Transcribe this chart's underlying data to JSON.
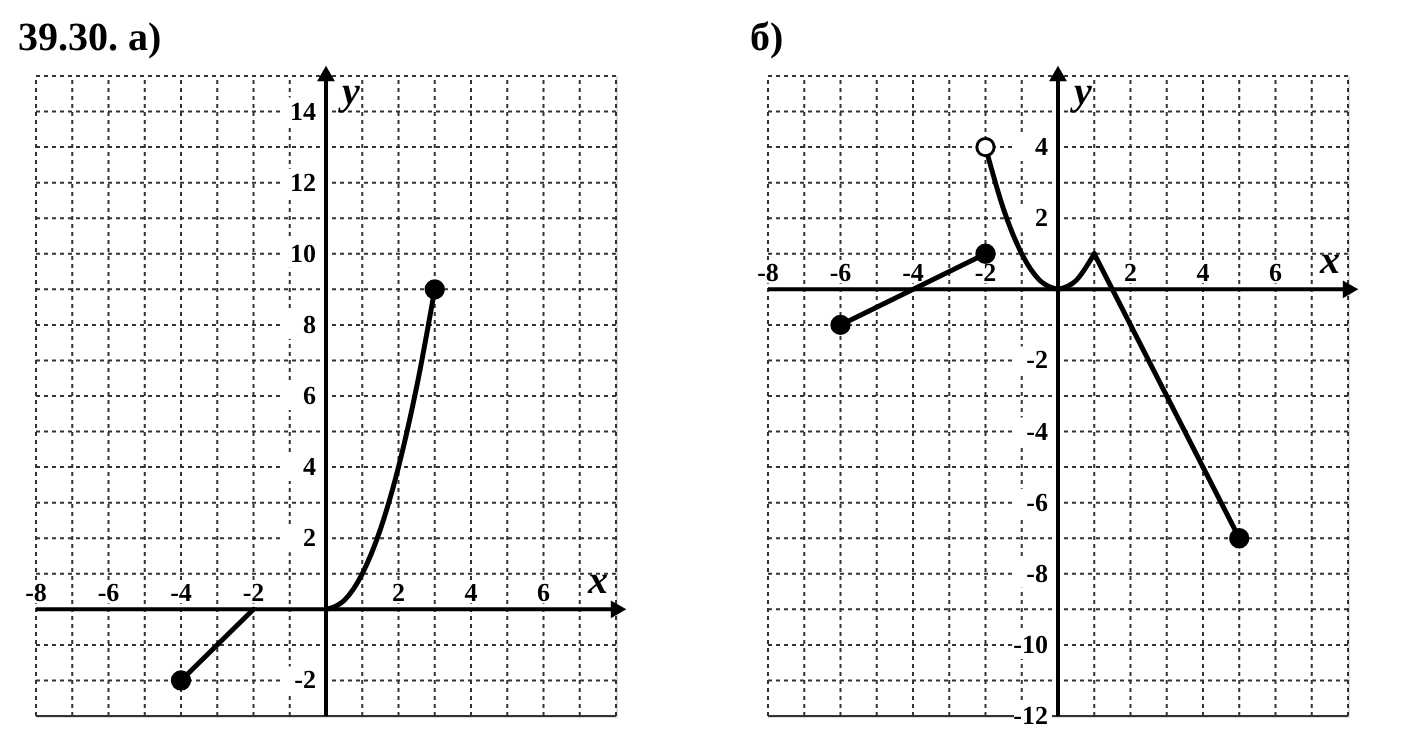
{
  "chart_data": [
    {
      "type": "line",
      "title": "39.30. а)",
      "xlabel": "x",
      "ylabel": "y",
      "grid": true,
      "marker": "none",
      "line_style": "solid",
      "xlim": [
        -8,
        8
      ],
      "ylim": [
        -3,
        15
      ],
      "xticks": [
        -8,
        {
          "value": -7,
          "label": null
        },
        -6,
        {
          "value": -5,
          "label": null
        },
        -4,
        {
          "value": -3,
          "label": null
        },
        -2,
        {
          "value": -1,
          "label": null
        },
        {
          "value": 0,
          "label": null
        },
        {
          "value": 1,
          "label": null
        },
        2,
        {
          "value": 3,
          "label": null
        },
        4,
        {
          "value": 5,
          "label": null
        },
        6,
        {
          "value": 7,
          "label": null
        },
        {
          "value": 8,
          "label": null
        }
      ],
      "yticks": [
        {
          "value": -3,
          "label": null
        },
        -2,
        {
          "value": -1,
          "label": null
        },
        {
          "value": 0,
          "label": null
        },
        {
          "value": 1,
          "label": null
        },
        2,
        {
          "value": 3,
          "label": null
        },
        4,
        {
          "value": 5,
          "label": null
        },
        6,
        {
          "value": 7,
          "label": null
        },
        8,
        {
          "value": 9,
          "label": null
        },
        10,
        {
          "value": 11,
          "label": null
        },
        12,
        {
          "value": 13,
          "label": null
        },
        14,
        {
          "value": 15,
          "label": null
        }
      ],
      "series": [
        {
          "color": "#000000",
          "x": [
            -4,
            -2
          ],
          "values": [
            -2,
            0
          ]
        },
        {
          "color": "#000000",
          "x": [
            0,
            0.5,
            1,
            1.5,
            2,
            2.5,
            3
          ],
          "values": [
            0,
            0.25,
            1,
            2.25,
            4,
            6.25,
            9
          ]
        },
        {
          "type": "scatter",
          "marker": "circle",
          "color": "#000000",
          "x": [
            -4,
            3
          ],
          "values": [
            -2,
            9
          ]
        }
      ]
    },
    {
      "type": "line",
      "title": "б)",
      "xlabel": "x",
      "ylabel": "y",
      "grid": true,
      "marker": "none",
      "line_style": "solid",
      "xlim": [
        -8,
        8
      ],
      "ylim": [
        -12,
        6
      ],
      "xticks": [
        -8,
        {
          "value": -7,
          "label": null
        },
        -6,
        {
          "value": -5,
          "label": null
        },
        -4,
        {
          "value": -3,
          "label": null
        },
        -2,
        {
          "value": -1,
          "label": null
        },
        {
          "value": 0,
          "label": null
        },
        {
          "value": 1,
          "label": null
        },
        2,
        {
          "value": 3,
          "label": null
        },
        4,
        {
          "value": 5,
          "label": null
        },
        6,
        {
          "value": 7,
          "label": null
        },
        {
          "value": 8,
          "label": null
        }
      ],
      "yticks": [
        -12,
        {
          "value": -11,
          "label": null
        },
        -10,
        {
          "value": -9,
          "label": null
        },
        -8,
        {
          "value": -7,
          "label": null
        },
        -6,
        {
          "value": -5,
          "label": null
        },
        -4,
        {
          "value": -3,
          "label": null
        },
        -2,
        {
          "value": -1,
          "label": null
        },
        {
          "value": 0,
          "label": null
        },
        {
          "value": 1,
          "label": null
        },
        2,
        {
          "value": 3,
          "label": null
        },
        4,
        {
          "value": 5,
          "label": null
        },
        {
          "value": 6,
          "label": null
        }
      ],
      "series": [
        {
          "color": "#000000",
          "x": [
            -6,
            -2
          ],
          "values": [
            -1,
            1
          ]
        },
        {
          "color": "#000000",
          "x": [
            -2,
            -1.5,
            -1,
            -0.5,
            0
          ],
          "values": [
            4,
            2.25,
            1,
            0.25,
            0
          ]
        },
        {
          "color": "#000000",
          "x": [
            0,
            0.5,
            1
          ],
          "values": [
            0,
            0.25,
            1
          ]
        },
        {
          "color": "#000000",
          "x": [
            1,
            5
          ],
          "values": [
            1,
            -7
          ]
        },
        {
          "type": "scatter",
          "marker": "circle",
          "color": "#000000",
          "x": [
            -6,
            -2,
            5
          ],
          "values": [
            -1,
            1,
            -7
          ]
        },
        {
          "type": "scatter",
          "marker": "circle",
          "color": "#ffffff",
          "x": [
            -2
          ],
          "values": [
            4
          ]
        }
      ]
    }
  ]
}
